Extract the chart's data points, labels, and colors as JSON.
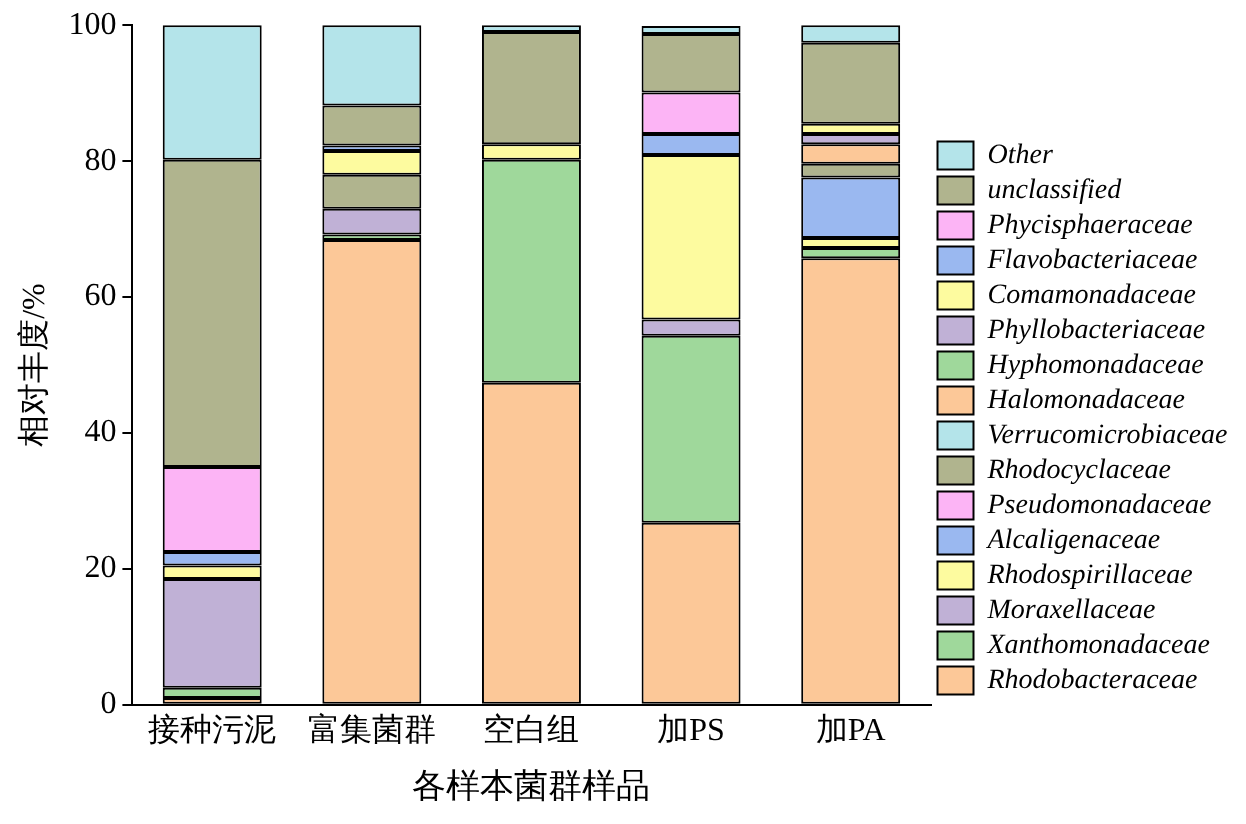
{
  "chart_data": {
    "type": "bar",
    "stacked": true,
    "xlabel": "各样本菌群样品",
    "ylabel": "相对丰度/%",
    "categories": [
      "接种污泥",
      "富集菌群",
      "空白组",
      "加PS",
      "加PA"
    ],
    "ylim": [
      0,
      100
    ],
    "yticks": [
      0,
      20,
      40,
      60,
      80,
      100
    ],
    "grid": false,
    "legend": "right",
    "series": [
      {
        "name": "Rhodobacteraceae",
        "color": "#fcc898",
        "values": [
          1.0,
          68.4,
          47.4,
          26.8,
          65.7
        ]
      },
      {
        "name": "Xanthomonadaceae",
        "color": "#9fd89b",
        "values": [
          1.5,
          0.8,
          null,
          null,
          1.5
        ]
      },
      {
        "name": "Moraxellaceae",
        "color": "#c0b1d6",
        "values": [
          16.0,
          3.8,
          null,
          null,
          null
        ]
      },
      {
        "name": "Rhodospirillaceae",
        "color": "#fdfb9f",
        "values": [
          2.0,
          null,
          null,
          null,
          1.5
        ]
      },
      {
        "name": "Alcaligenaceae",
        "color": "#9ab8f0",
        "values": [
          2.0,
          null,
          null,
          null,
          8.9
        ]
      },
      {
        "name": "Pseudomonadaceae",
        "color": "#fcb4f5",
        "values": [
          12.5,
          null,
          null,
          null,
          null
        ]
      },
      {
        "name": "Rhodocyclaceae",
        "color": "#b0b48e",
        "values": [
          45.2,
          5.0,
          null,
          null,
          2.0
        ]
      },
      {
        "name": "Verrucomicrobiaceae",
        "color": "#b4e4ea",
        "values": [
          19.8,
          null,
          null,
          null,
          null
        ]
      },
      {
        "name": "Halomonadaceae",
        "color": "#fcc898",
        "values": [
          null,
          null,
          null,
          null,
          2.9
        ]
      },
      {
        "name": "Hyphomonadaceae",
        "color": "#9fd89b",
        "values": [
          null,
          null,
          32.8,
          27.5,
          null
        ]
      },
      {
        "name": "Phyllobacteriaceae",
        "color": "#c0b1d6",
        "values": [
          null,
          null,
          null,
          2.4,
          1.5
        ]
      },
      {
        "name": "Comamonadaceae",
        "color": "#fdfb9f",
        "values": [
          null,
          3.5,
          2.3,
          24.2,
          1.5
        ]
      },
      {
        "name": "Flavobacteriaceae",
        "color": "#9ab8f0",
        "values": [
          null,
          0.8,
          null,
          3.1,
          null
        ]
      },
      {
        "name": "Phycisphaeraceae",
        "color": "#fcb4f5",
        "values": [
          null,
          null,
          null,
          6.1,
          null
        ]
      },
      {
        "name": "unclassified",
        "color": "#b0b48e",
        "values": [
          null,
          5.9,
          16.5,
          8.6,
          11.9
        ]
      },
      {
        "name": "Other",
        "color": "#b4e4ea",
        "values": [
          null,
          11.8,
          1.0,
          1.2,
          2.6
        ]
      }
    ]
  }
}
